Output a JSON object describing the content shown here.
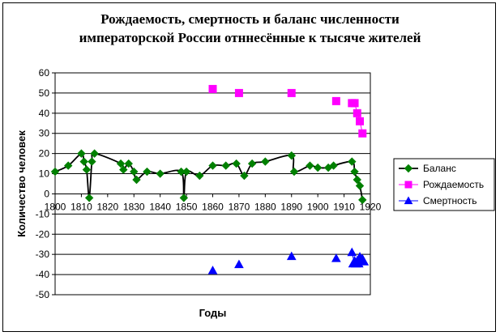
{
  "chart_data": {
    "type": "scatter",
    "title_lines": [
      "Рождаемость, смертность и баланс численности",
      "императорской России отннесённые к тысяче жителей"
    ],
    "xlabel": "Годы",
    "ylabel": "Количество человек",
    "xlim": [
      1800,
      1920
    ],
    "ylim": [
      -50,
      60
    ],
    "x_ticks": [
      "1800",
      "1810",
      "1820",
      "1830",
      "1840",
      "1850",
      "1860",
      "1870",
      "1880",
      "1890",
      "1900",
      "1910",
      "1920"
    ],
    "y_ticks": [
      "60",
      "50",
      "40",
      "30",
      "20",
      "10",
      "0",
      "-10",
      "-20",
      "-30",
      "-40",
      "-50"
    ],
    "grid": "horizontal",
    "legend_position": "right",
    "series": [
      {
        "name": "Баланс",
        "color": "#000000",
        "marker_color": "#008000",
        "marker": "diamond",
        "line": "smooth",
        "x": [
          1800,
          1805,
          1810,
          1811,
          1812,
          1813,
          1814,
          1815,
          1825,
          1826,
          1828,
          1830,
          1831,
          1835,
          1840,
          1848,
          1849,
          1850,
          1855,
          1860,
          1865,
          1869,
          1872,
          1875,
          1880,
          1890,
          1891,
          1897,
          1900,
          1904,
          1906,
          1913,
          1914,
          1915,
          1916,
          1917
        ],
        "y": [
          11,
          14,
          20,
          16,
          12,
          -2,
          16,
          20,
          15,
          12,
          15,
          11,
          7,
          11,
          10,
          11,
          -2,
          11,
          9,
          14,
          14,
          15,
          9,
          15,
          16,
          19,
          11,
          14,
          13,
          13,
          14,
          16,
          11,
          7,
          4,
          -3
        ]
      },
      {
        "name": "Рождаемость",
        "color": "#ff00ff",
        "marker_color": "#ff00ff",
        "marker": "square",
        "line": "partial",
        "x": [
          1860,
          1870,
          1890,
          1907,
          1913,
          1914,
          1915,
          1916,
          1917
        ],
        "y": [
          52,
          50,
          50,
          46,
          45,
          45,
          40,
          36,
          30
        ]
      },
      {
        "name": "Смертность",
        "color": "#0000ff",
        "marker_color": "#0000ff",
        "marker": "triangle",
        "line": "partial",
        "x": [
          1860,
          1870,
          1890,
          1907,
          1913,
          1914,
          1915,
          1916,
          1917
        ],
        "y": [
          -38,
          -35,
          -31,
          -32,
          -29,
          -34,
          -34,
          -32,
          -33
        ]
      }
    ]
  }
}
